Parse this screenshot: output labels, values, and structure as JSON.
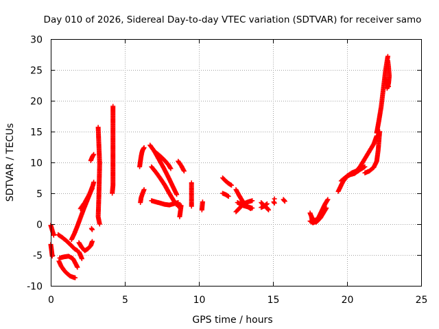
{
  "chart_data": {
    "type": "scatter",
    "title": "Day 010 of 2026, Sidereal Day-to-day VTEC variation (SDTVAR) for receiver samo",
    "xlabel": "GPS time / hours",
    "ylabel": "SDTVAR / TECUs",
    "xlim": [
      0,
      25
    ],
    "ylim": [
      -10,
      30
    ],
    "xticks": [
      0,
      5,
      10,
      15,
      20,
      25
    ],
    "yticks": [
      -10,
      -5,
      0,
      5,
      10,
      15,
      20,
      25,
      30
    ],
    "grid": true,
    "marker": "+",
    "color": "#ff0000",
    "segments": [
      {
        "x": [
          0.0,
          0.1,
          0.2
        ],
        "y": [
          -0.2,
          -1.0,
          -1.8
        ]
      },
      {
        "x": [
          0.0,
          0.05,
          0.1
        ],
        "y": [
          -3.3,
          -4.2,
          -5.2
        ]
      },
      {
        "x": [
          0.5,
          0.8,
          1.1,
          1.4,
          1.6,
          1.8
        ],
        "y": [
          -1.7,
          -2.2,
          -2.8,
          -3.5,
          -4.0,
          -4.3
        ]
      },
      {
        "x": [
          0.55,
          0.7,
          0.9,
          1.1,
          1.3,
          1.5,
          1.65
        ],
        "y": [
          -6.0,
          -6.8,
          -7.5,
          -8.0,
          -8.4,
          -8.6,
          -8.7
        ]
      },
      {
        "x": [
          0.6,
          0.9,
          1.2,
          1.5,
          1.7,
          1.8
        ],
        "y": [
          -5.5,
          -5.3,
          -5.2,
          -5.6,
          -6.5,
          -7.0
        ]
      },
      {
        "x": [
          1.4,
          1.6,
          1.8,
          2.0,
          2.2,
          2.4,
          2.6,
          2.75,
          2.85,
          2.9
        ],
        "y": [
          -2.5,
          -1.5,
          -0.3,
          1.0,
          2.3,
          3.5,
          4.7,
          5.7,
          6.3,
          6.8
        ]
      },
      {
        "x": [
          1.9,
          2.1,
          2.3,
          2.5,
          2.7,
          2.8
        ],
        "y": [
          -3.0,
          -3.8,
          -4.3,
          -4.0,
          -3.5,
          -2.8
        ]
      },
      {
        "x": [
          2.0,
          2.3,
          2.6,
          2.8
        ],
        "y": [
          2.5,
          3.5,
          4.8,
          5.8
        ]
      },
      {
        "x": [
          1.9,
          2.0,
          2.1
        ],
        "y": [
          -4.5,
          -5.0,
          -5.6
        ]
      },
      {
        "x": [
          2.7,
          2.8,
          2.9
        ],
        "y": [
          10.3,
          10.9,
          11.3
        ]
      },
      {
        "x": [
          3.2,
          3.3,
          3.25,
          3.2,
          3.3
        ],
        "y": [
          15.7,
          9.8,
          4.7,
          1.2,
          0.0
        ]
      },
      {
        "x": [
          4.2,
          4.2,
          4.2,
          4.2,
          4.2,
          4.15
        ],
        "y": [
          19.1,
          14.8,
          13.4,
          10.1,
          6.3,
          5.0
        ]
      },
      {
        "x": [
          2.8,
          2.75
        ],
        "y": [
          -0.9,
          -0.7
        ]
      },
      {
        "x": [
          6.0,
          6.05,
          6.1,
          6.15,
          6.2,
          6.25,
          6.3
        ],
        "y": [
          9.3,
          10.2,
          11.0,
          11.6,
          12.0,
          12.2,
          12.4
        ]
      },
      {
        "x": [
          6.05,
          6.1,
          6.2,
          6.3
        ],
        "y": [
          3.5,
          4.3,
          5.0,
          5.6
        ]
      },
      {
        "x": [
          6.7,
          7.0,
          7.3,
          7.6,
          7.9,
          8.2,
          8.5
        ],
        "y": [
          12.8,
          11.8,
          10.5,
          9.2,
          7.8,
          6.3,
          4.8
        ]
      },
      {
        "x": [
          6.8,
          7.1,
          7.4,
          7.7,
          8.0,
          8.3,
          8.6
        ],
        "y": [
          9.3,
          8.4,
          7.4,
          6.3,
          5.0,
          3.8,
          2.9
        ]
      },
      {
        "x": [
          6.8,
          7.1,
          7.4,
          7.7,
          8.0,
          8.3,
          8.6
        ],
        "y": [
          3.8,
          3.6,
          3.4,
          3.2,
          3.1,
          3.3,
          3.5
        ]
      },
      {
        "x": [
          7.0,
          7.4,
          7.7,
          7.95,
          8.1
        ],
        "y": [
          11.8,
          11.0,
          10.3,
          9.6,
          9.0
        ]
      },
      {
        "x": [
          8.6,
          8.8,
          9.0
        ],
        "y": [
          10.2,
          9.5,
          8.6
        ]
      },
      {
        "x": [
          8.6,
          8.8,
          8.7
        ],
        "y": [
          3.2,
          3.0,
          1.2
        ]
      },
      {
        "x": [
          9.5,
          9.5,
          9.5
        ],
        "y": [
          6.7,
          3.5,
          2.9
        ]
      },
      {
        "x": [
          10.25,
          10.2
        ],
        "y": [
          3.6,
          2.3
        ]
      },
      {
        "x": [
          11.6,
          11.8,
          12.0,
          12.2
        ],
        "y": [
          7.5,
          7.0,
          6.6,
          6.3
        ]
      },
      {
        "x": [
          11.6,
          11.8,
          12.0
        ],
        "y": [
          5.0,
          4.8,
          4.5
        ]
      },
      {
        "x": [
          12.5,
          12.7,
          12.9,
          13.1,
          13.3,
          13.5
        ],
        "y": [
          5.6,
          4.7,
          3.9,
          3.2,
          2.8,
          2.5
        ]
      },
      {
        "x": [
          12.5,
          12.7,
          12.9,
          13.1,
          13.3,
          13.6
        ],
        "y": [
          2.0,
          2.5,
          3.0,
          3.4,
          3.6,
          3.8
        ]
      },
      {
        "x": [
          12.6,
          12.8,
          13.0,
          13.3,
          13.6
        ],
        "y": [
          3.5,
          3.3,
          3.0,
          2.8,
          2.6
        ]
      },
      {
        "x": [
          14.2,
          14.4,
          14.6,
          14.7
        ],
        "y": [
          3.5,
          3.0,
          2.6,
          2.3
        ]
      },
      {
        "x": [
          14.2,
          14.4,
          14.6
        ],
        "y": [
          2.7,
          2.9,
          3.3
        ]
      },
      {
        "x": [
          15.05,
          15.1
        ],
        "y": [
          3.6,
          3.4
        ]
      },
      {
        "x": [
          15.7,
          15.8
        ],
        "y": [
          4.0,
          3.7
        ]
      },
      {
        "x": [
          15.1
        ],
        "y": [
          4.1
        ]
      },
      {
        "x": [
          17.5,
          17.6,
          17.7,
          17.8,
          17.9,
          18.0,
          18.2,
          18.4,
          18.6
        ],
        "y": [
          1.8,
          1.2,
          0.7,
          0.4,
          0.3,
          0.5,
          1.0,
          1.8,
          2.6
        ]
      },
      {
        "x": [
          17.5,
          17.7,
          17.9,
          18.1,
          18.3,
          18.5,
          18.7
        ],
        "y": [
          0.5,
          0.2,
          0.5,
          1.2,
          2.2,
          3.2,
          4.0
        ]
      },
      {
        "x": [
          17.6,
          17.8,
          18.0,
          18.2,
          18.4
        ],
        "y": [
          1.0,
          0.6,
          0.8,
          1.4,
          2.0
        ]
      },
      {
        "x": [
          19.4,
          19.7,
          20.0,
          20.3,
          20.6,
          20.9,
          21.2
        ],
        "y": [
          5.3,
          6.8,
          7.8,
          8.3,
          8.6,
          8.9,
          9.3
        ]
      },
      {
        "x": [
          19.6,
          19.9,
          20.2,
          20.5,
          20.8,
          21.1
        ],
        "y": [
          7.0,
          7.6,
          8.0,
          8.2,
          8.7,
          9.2
        ]
      },
      {
        "x": [
          20.6,
          20.9,
          21.2,
          21.5,
          21.8,
          22.0
        ],
        "y": [
          8.5,
          9.4,
          10.6,
          11.8,
          13.0,
          14.3
        ]
      },
      {
        "x": [
          21.2,
          21.5,
          21.8,
          22.0,
          22.1,
          22.2
        ],
        "y": [
          8.3,
          8.6,
          9.2,
          10.2,
          12.0,
          15.0
        ]
      },
      {
        "x": [
          22.0,
          22.15,
          22.3,
          22.4,
          22.5,
          22.6,
          22.7,
          22.75
        ],
        "y": [
          14.8,
          16.8,
          19.0,
          21.0,
          23.0,
          25.0,
          26.5,
          27.2
        ]
      },
      {
        "x": [
          22.75,
          22.8,
          22.85,
          22.8,
          22.7
        ],
        "y": [
          26.5,
          25.5,
          24.0,
          22.8,
          22.0
        ]
      },
      {
        "x": [
          22.6,
          22.7,
          22.75,
          22.8
        ],
        "y": [
          23.5,
          22.8,
          22.5,
          22.3
        ]
      }
    ]
  }
}
